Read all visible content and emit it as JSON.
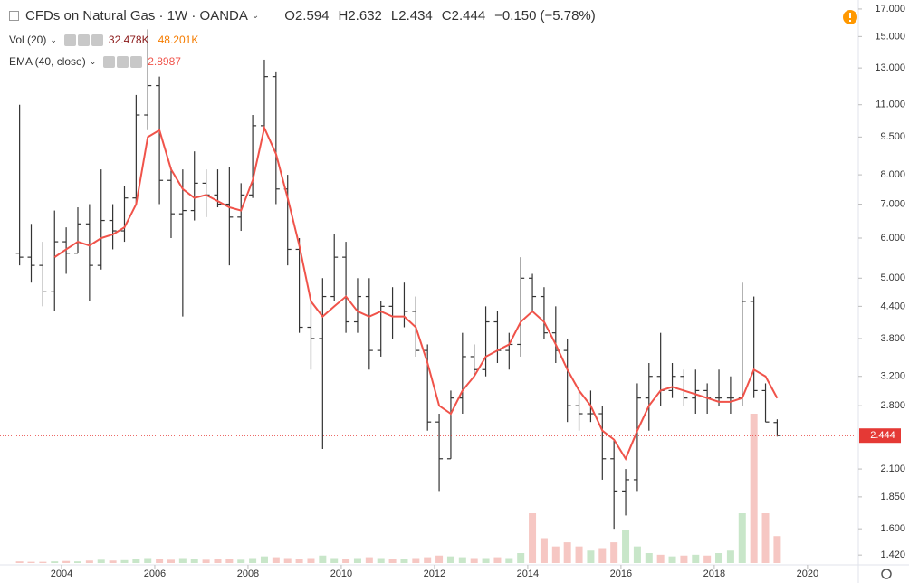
{
  "chart_data": {
    "type": "ohlc",
    "title": "CFDs on Natural Gas · 1W · OANDA",
    "ohlc_letters": [
      "O",
      "H",
      "L",
      "C"
    ],
    "change": {
      "value": -0.15,
      "label": "−0.150"
    },
    "change_pct": {
      "value": -5.78,
      "label": "(−5.78%)"
    },
    "log_scale": true,
    "grid": false,
    "color": "#333333",
    "x": [
      2003.1,
      2003.35,
      2003.6,
      2003.85,
      2004.1,
      2004.35,
      2004.6,
      2004.85,
      2005.1,
      2005.35,
      2005.6,
      2005.85,
      2006.1,
      2006.35,
      2006.6,
      2006.85,
      2007.1,
      2007.35,
      2007.6,
      2007.85,
      2008.1,
      2008.35,
      2008.6,
      2008.85,
      2009.1,
      2009.35,
      2009.6,
      2009.85,
      2010.1,
      2010.35,
      2010.6,
      2010.85,
      2011.1,
      2011.35,
      2011.6,
      2011.85,
      2012.1,
      2012.35,
      2012.6,
      2012.85,
      2013.1,
      2013.35,
      2013.6,
      2013.85,
      2014.1,
      2014.35,
      2014.6,
      2014.85,
      2015.1,
      2015.35,
      2015.6,
      2015.85,
      2016.1,
      2016.35,
      2016.6,
      2016.85,
      2017.1,
      2017.35,
      2017.6,
      2017.85,
      2018.1,
      2018.35,
      2018.6,
      2018.85,
      2019.1,
      2019.35
    ],
    "open": [
      5.6,
      5.5,
      5.3,
      4.7,
      5.9,
      5.6,
      6.4,
      5.3,
      6.5,
      6.2,
      7.2,
      10.5,
      12.0,
      7.8,
      6.7,
      6.8,
      7.7,
      7.3,
      7.0,
      6.6,
      7.3,
      10.0,
      12.5,
      7.5,
      5.7,
      4.0,
      3.8,
      4.6,
      5.5,
      4.1,
      4.6,
      3.6,
      4.4,
      4.2,
      4.3,
      3.6,
      2.6,
      2.2,
      2.9,
      3.5,
      3.3,
      4.1,
      3.6,
      3.7,
      5.0,
      4.6,
      3.9,
      3.6,
      2.8,
      2.7,
      2.7,
      2.2,
      1.9,
      2.0,
      2.9,
      3.2,
      3.0,
      3.2,
      2.9,
      3.0,
      2.9,
      2.9,
      2.9,
      4.5,
      3.0,
      2.594
    ],
    "high": [
      11.0,
      6.4,
      5.9,
      6.8,
      6.3,
      6.9,
      7.0,
      8.2,
      7.0,
      7.6,
      11.5,
      15.5,
      12.5,
      8.3,
      8.2,
      8.9,
      8.2,
      8.2,
      8.3,
      7.7,
      10.5,
      13.5,
      12.8,
      8.0,
      6.0,
      4.5,
      5.0,
      6.1,
      5.9,
      5.0,
      5.0,
      4.5,
      4.8,
      4.9,
      4.6,
      3.7,
      2.7,
      3.0,
      3.9,
      3.7,
      4.4,
      4.3,
      3.9,
      5.5,
      5.1,
      4.8,
      4.4,
      3.8,
      3.0,
      3.0,
      2.8,
      2.4,
      2.1,
      3.1,
      3.4,
      3.9,
      3.4,
      3.3,
      3.3,
      3.1,
      3.3,
      3.2,
      4.9,
      4.6,
      3.1,
      2.632
    ],
    "low": [
      5.3,
      4.9,
      4.4,
      4.3,
      5.1,
      5.6,
      4.5,
      5.2,
      5.7,
      5.9,
      7.0,
      9.8,
      7.0,
      6.0,
      4.2,
      6.5,
      6.6,
      6.9,
      5.3,
      6.2,
      7.2,
      9.8,
      7.0,
      5.3,
      3.9,
      3.3,
      2.3,
      4.5,
      3.9,
      3.9,
      3.3,
      3.5,
      3.8,
      4.0,
      3.5,
      2.5,
      1.9,
      2.2,
      2.7,
      3.2,
      3.2,
      3.4,
      3.3,
      3.5,
      4.3,
      3.8,
      3.4,
      2.6,
      2.5,
      2.6,
      2.0,
      1.6,
      1.7,
      1.9,
      2.5,
      2.8,
      2.9,
      2.8,
      2.7,
      2.7,
      2.8,
      2.7,
      2.8,
      2.9,
      2.6,
      2.434
    ],
    "close": [
      5.5,
      5.3,
      4.7,
      5.9,
      5.6,
      6.4,
      5.3,
      6.5,
      6.2,
      7.2,
      10.5,
      12.0,
      7.8,
      6.7,
      6.8,
      7.7,
      7.3,
      7.0,
      6.6,
      7.3,
      10.0,
      12.5,
      7.5,
      5.7,
      4.0,
      3.8,
      4.6,
      5.5,
      4.1,
      4.6,
      3.6,
      4.4,
      4.2,
      4.3,
      3.6,
      2.6,
      2.2,
      2.9,
      3.5,
      3.3,
      4.1,
      3.6,
      3.7,
      5.0,
      4.6,
      3.9,
      3.6,
      2.8,
      2.7,
      2.7,
      2.2,
      1.9,
      2.0,
      2.9,
      3.2,
      3.0,
      3.2,
      2.9,
      3.0,
      2.9,
      2.9,
      2.9,
      4.5,
      3.0,
      2.6,
      2.444
    ],
    "xlim": [
      2002.68,
      2021.09
    ],
    "xticks": [
      2004,
      2006,
      2008,
      2010,
      2012,
      2014,
      2016,
      2018,
      2020
    ],
    "ylim": [
      1.358,
      17.71
    ],
    "yticks": [
      {
        "value": 17,
        "label": "17.000"
      },
      {
        "value": 15,
        "label": "15.000"
      },
      {
        "value": 13,
        "label": "13.000"
      },
      {
        "value": 11,
        "label": "11.000"
      },
      {
        "value": 9.5,
        "label": "9.500"
      },
      {
        "value": 8,
        "label": "8.000"
      },
      {
        "value": 7,
        "label": "7.000"
      },
      {
        "value": 6,
        "label": "6.000"
      },
      {
        "value": 5,
        "label": "5.000"
      },
      {
        "value": 4.4,
        "label": "4.400"
      },
      {
        "value": 3.8,
        "label": "3.800"
      },
      {
        "value": 3.2,
        "label": "3.200"
      },
      {
        "value": 2.8,
        "label": "2.800"
      },
      {
        "value": 2.1,
        "label": "2.100"
      },
      {
        "value": 1.85,
        "label": "1.850"
      },
      {
        "value": 1.6,
        "label": "1.600"
      },
      {
        "value": 1.42,
        "label": "1.420"
      }
    ],
    "last_price_label": "2.444",
    "price_line_color": "#e53935",
    "ema": {
      "name": "EMA (40, close)",
      "color": "#f0534a",
      "last_value": 2.8987,
      "values": [
        null,
        null,
        null,
        5.5,
        5.7,
        5.9,
        5.8,
        6.0,
        6.1,
        6.3,
        7.0,
        9.5,
        9.8,
        8.2,
        7.5,
        7.2,
        7.3,
        7.1,
        6.9,
        6.8,
        7.8,
        9.9,
        8.8,
        7.2,
        5.8,
        4.5,
        4.2,
        4.4,
        4.6,
        4.3,
        4.2,
        4.3,
        4.2,
        4.2,
        4.0,
        3.4,
        2.8,
        2.7,
        3.0,
        3.2,
        3.5,
        3.6,
        3.7,
        4.1,
        4.3,
        4.1,
        3.7,
        3.3,
        3.0,
        2.8,
        2.5,
        2.4,
        2.2,
        2.5,
        2.8,
        3.0,
        3.05,
        3.0,
        2.95,
        2.9,
        2.85,
        2.85,
        2.9,
        3.3,
        3.2,
        2.8987
      ]
    },
    "volume": {
      "name": "Vol (20)",
      "up_color": "#c8e6c9",
      "down_color": "#f6c7c3",
      "last": {
        "value": 32478,
        "label": "32.478K"
      },
      "last_color": "#8b1a1a",
      "ma": {
        "value": 48201,
        "label": "48.201K"
      },
      "ma_color": "#f57c00",
      "values": [
        2000,
        1500,
        1500,
        2000,
        2500,
        2000,
        3000,
        4000,
        3000,
        3500,
        5000,
        6000,
        5000,
        4000,
        6000,
        5000,
        4000,
        4500,
        5000,
        4000,
        6000,
        8000,
        7000,
        6000,
        5000,
        6000,
        9000,
        6000,
        5000,
        6000,
        7000,
        6000,
        5000,
        5000,
        6000,
        7000,
        9000,
        8000,
        7000,
        6000,
        6000,
        7000,
        6000,
        12000,
        60000,
        30000,
        20000,
        25000,
        20000,
        15000,
        18000,
        25000,
        40000,
        20000,
        12000,
        10000,
        8000,
        9000,
        10000,
        9000,
        12000,
        15000,
        60000,
        180000,
        60000,
        32478
      ]
    }
  }
}
